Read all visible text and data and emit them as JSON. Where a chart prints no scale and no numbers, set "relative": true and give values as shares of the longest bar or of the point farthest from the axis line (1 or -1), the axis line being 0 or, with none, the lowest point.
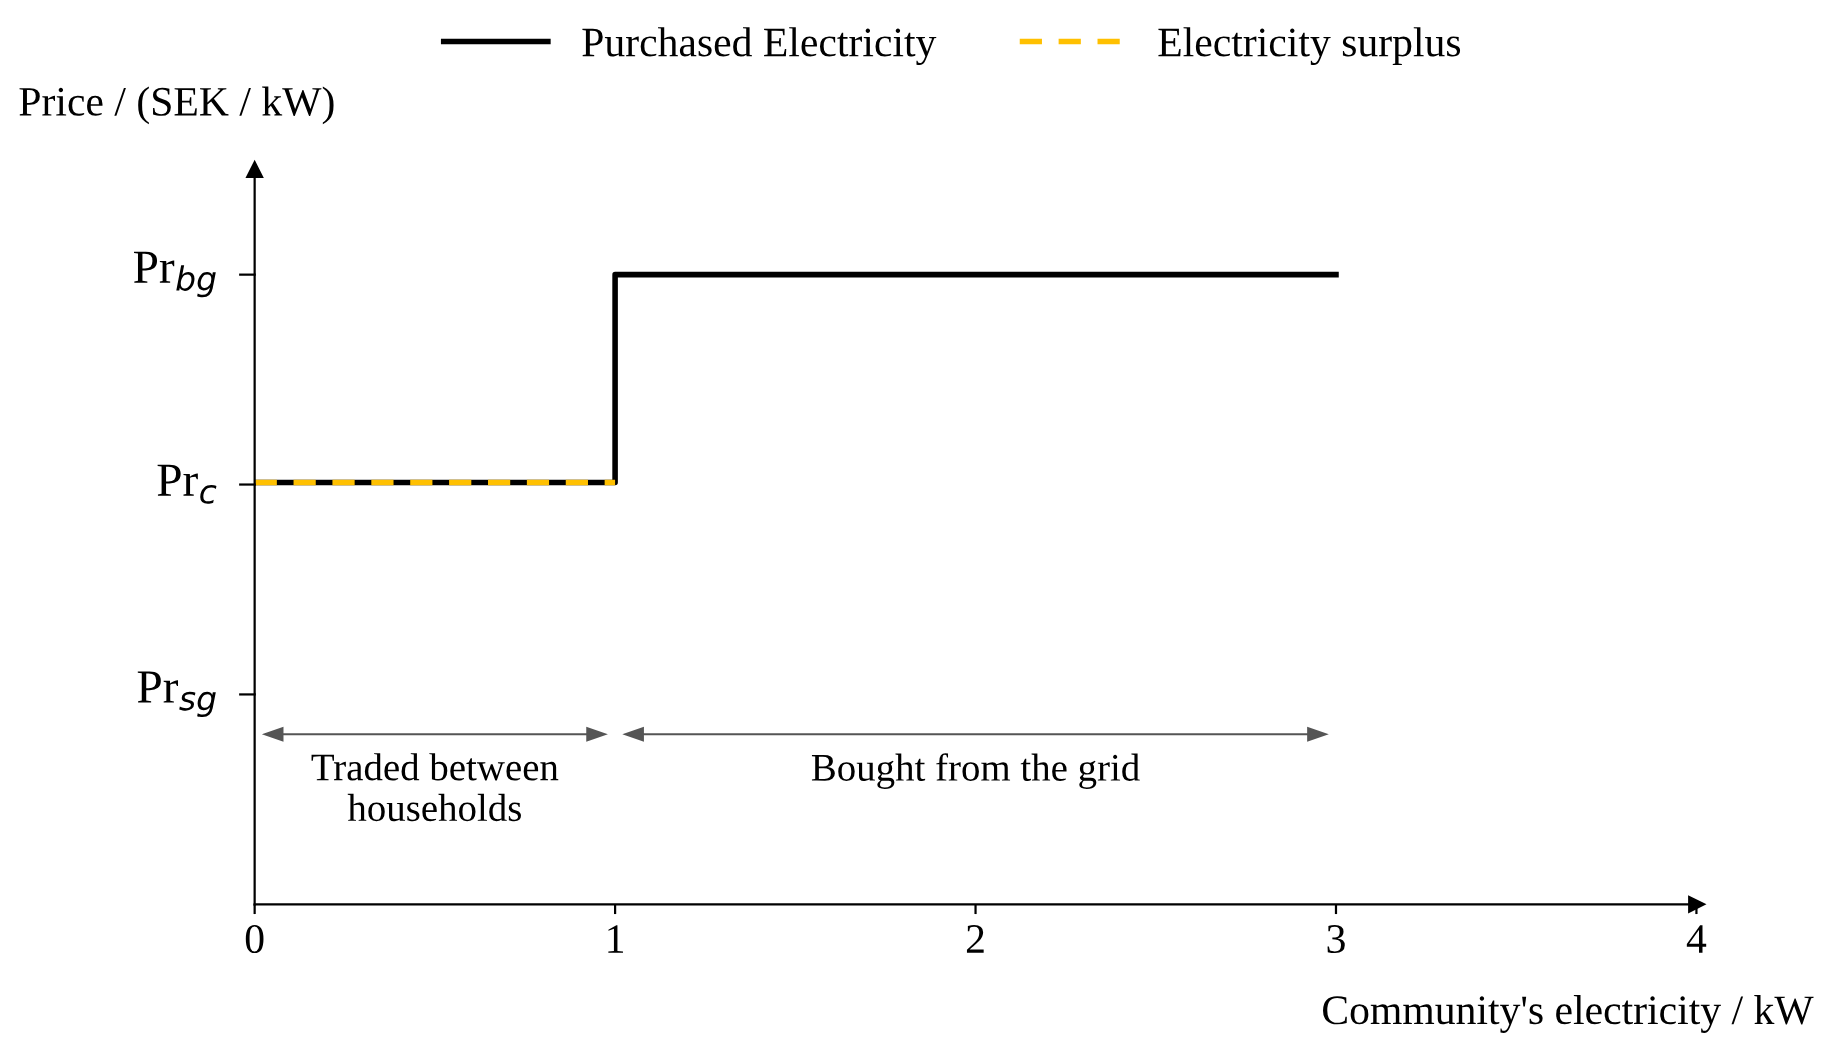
{
  "chart_data": {
    "type": "step",
    "relative": true,
    "xlabel": "Community's electricity / kW",
    "ylabel": "Price / (SEK / kW)",
    "xlim": [
      0,
      4
    ],
    "xticks": [
      0,
      1,
      2,
      3,
      4
    ],
    "series": [
      {
        "name": "Purchased Electricity",
        "color": "#000000",
        "x": [
          0,
          1,
          3
        ],
        "values": [
          0.67,
          1,
          1
        ],
        "line_style": "solid"
      },
      {
        "name": "Electricity surplus",
        "type": "line",
        "color": "#ffc000",
        "x": [
          0,
          1
        ],
        "values": [
          0.67,
          0.67
        ],
        "line_style": "dashed"
      }
    ],
    "annotations": [
      "Pr$_{sg}$",
      "Pr$_{c}$",
      "Pr$_{bg}$",
      "Traded between\nhouseholds",
      "Bought from the grid"
    ],
    "legend": "top"
  }
}
